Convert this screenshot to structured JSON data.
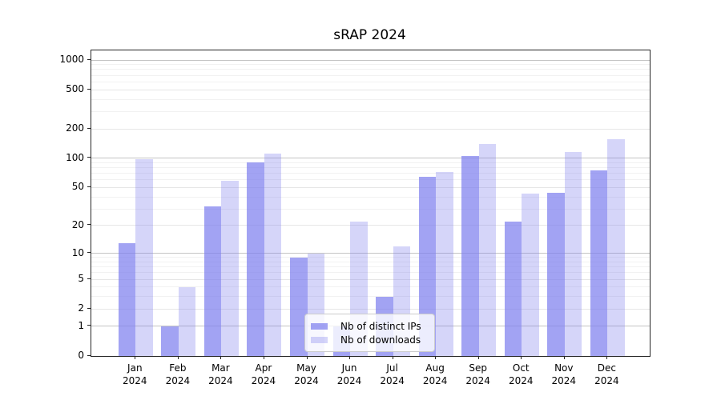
{
  "title": "sRAP 2024",
  "chart_data": {
    "type": "bar",
    "title": "sRAP 2024",
    "xlabel": "",
    "ylabel": "",
    "y_scale": "log10(value+1)",
    "ylim": [
      0,
      1259
    ],
    "yticks": [
      0,
      1,
      2,
      5,
      10,
      20,
      50,
      100,
      200,
      500,
      1000
    ],
    "grid": "on",
    "legend_position": "lower center",
    "categories": [
      "Jan 2024",
      "Feb 2024",
      "Mar 2024",
      "Apr 2024",
      "May 2024",
      "Jun 2024",
      "Jul 2024",
      "Aug 2024",
      "Sep 2024",
      "Oct 2024",
      "Nov 2024",
      "Dec 2024"
    ],
    "series": [
      {
        "name": "Nb of distinct IPs",
        "color": "rgba(126,128,238,0.72)",
        "values": [
          13,
          1,
          32,
          91,
          9,
          1,
          3,
          65,
          106,
          22,
          44,
          75
        ]
      },
      {
        "name": "Nb of downloads",
        "color": "rgba(126,128,238,0.33)",
        "values": [
          97,
          4,
          59,
          112,
          10,
          22,
          12,
          72,
          140,
          43,
          117,
          157
        ]
      }
    ]
  },
  "colors": {
    "major_gridline": "#c4c4c4",
    "labeled_gridline": "#e6e6e6",
    "minor_gridline": "#f1f1f1",
    "spine": "#262626",
    "background": "#ffffff"
  }
}
